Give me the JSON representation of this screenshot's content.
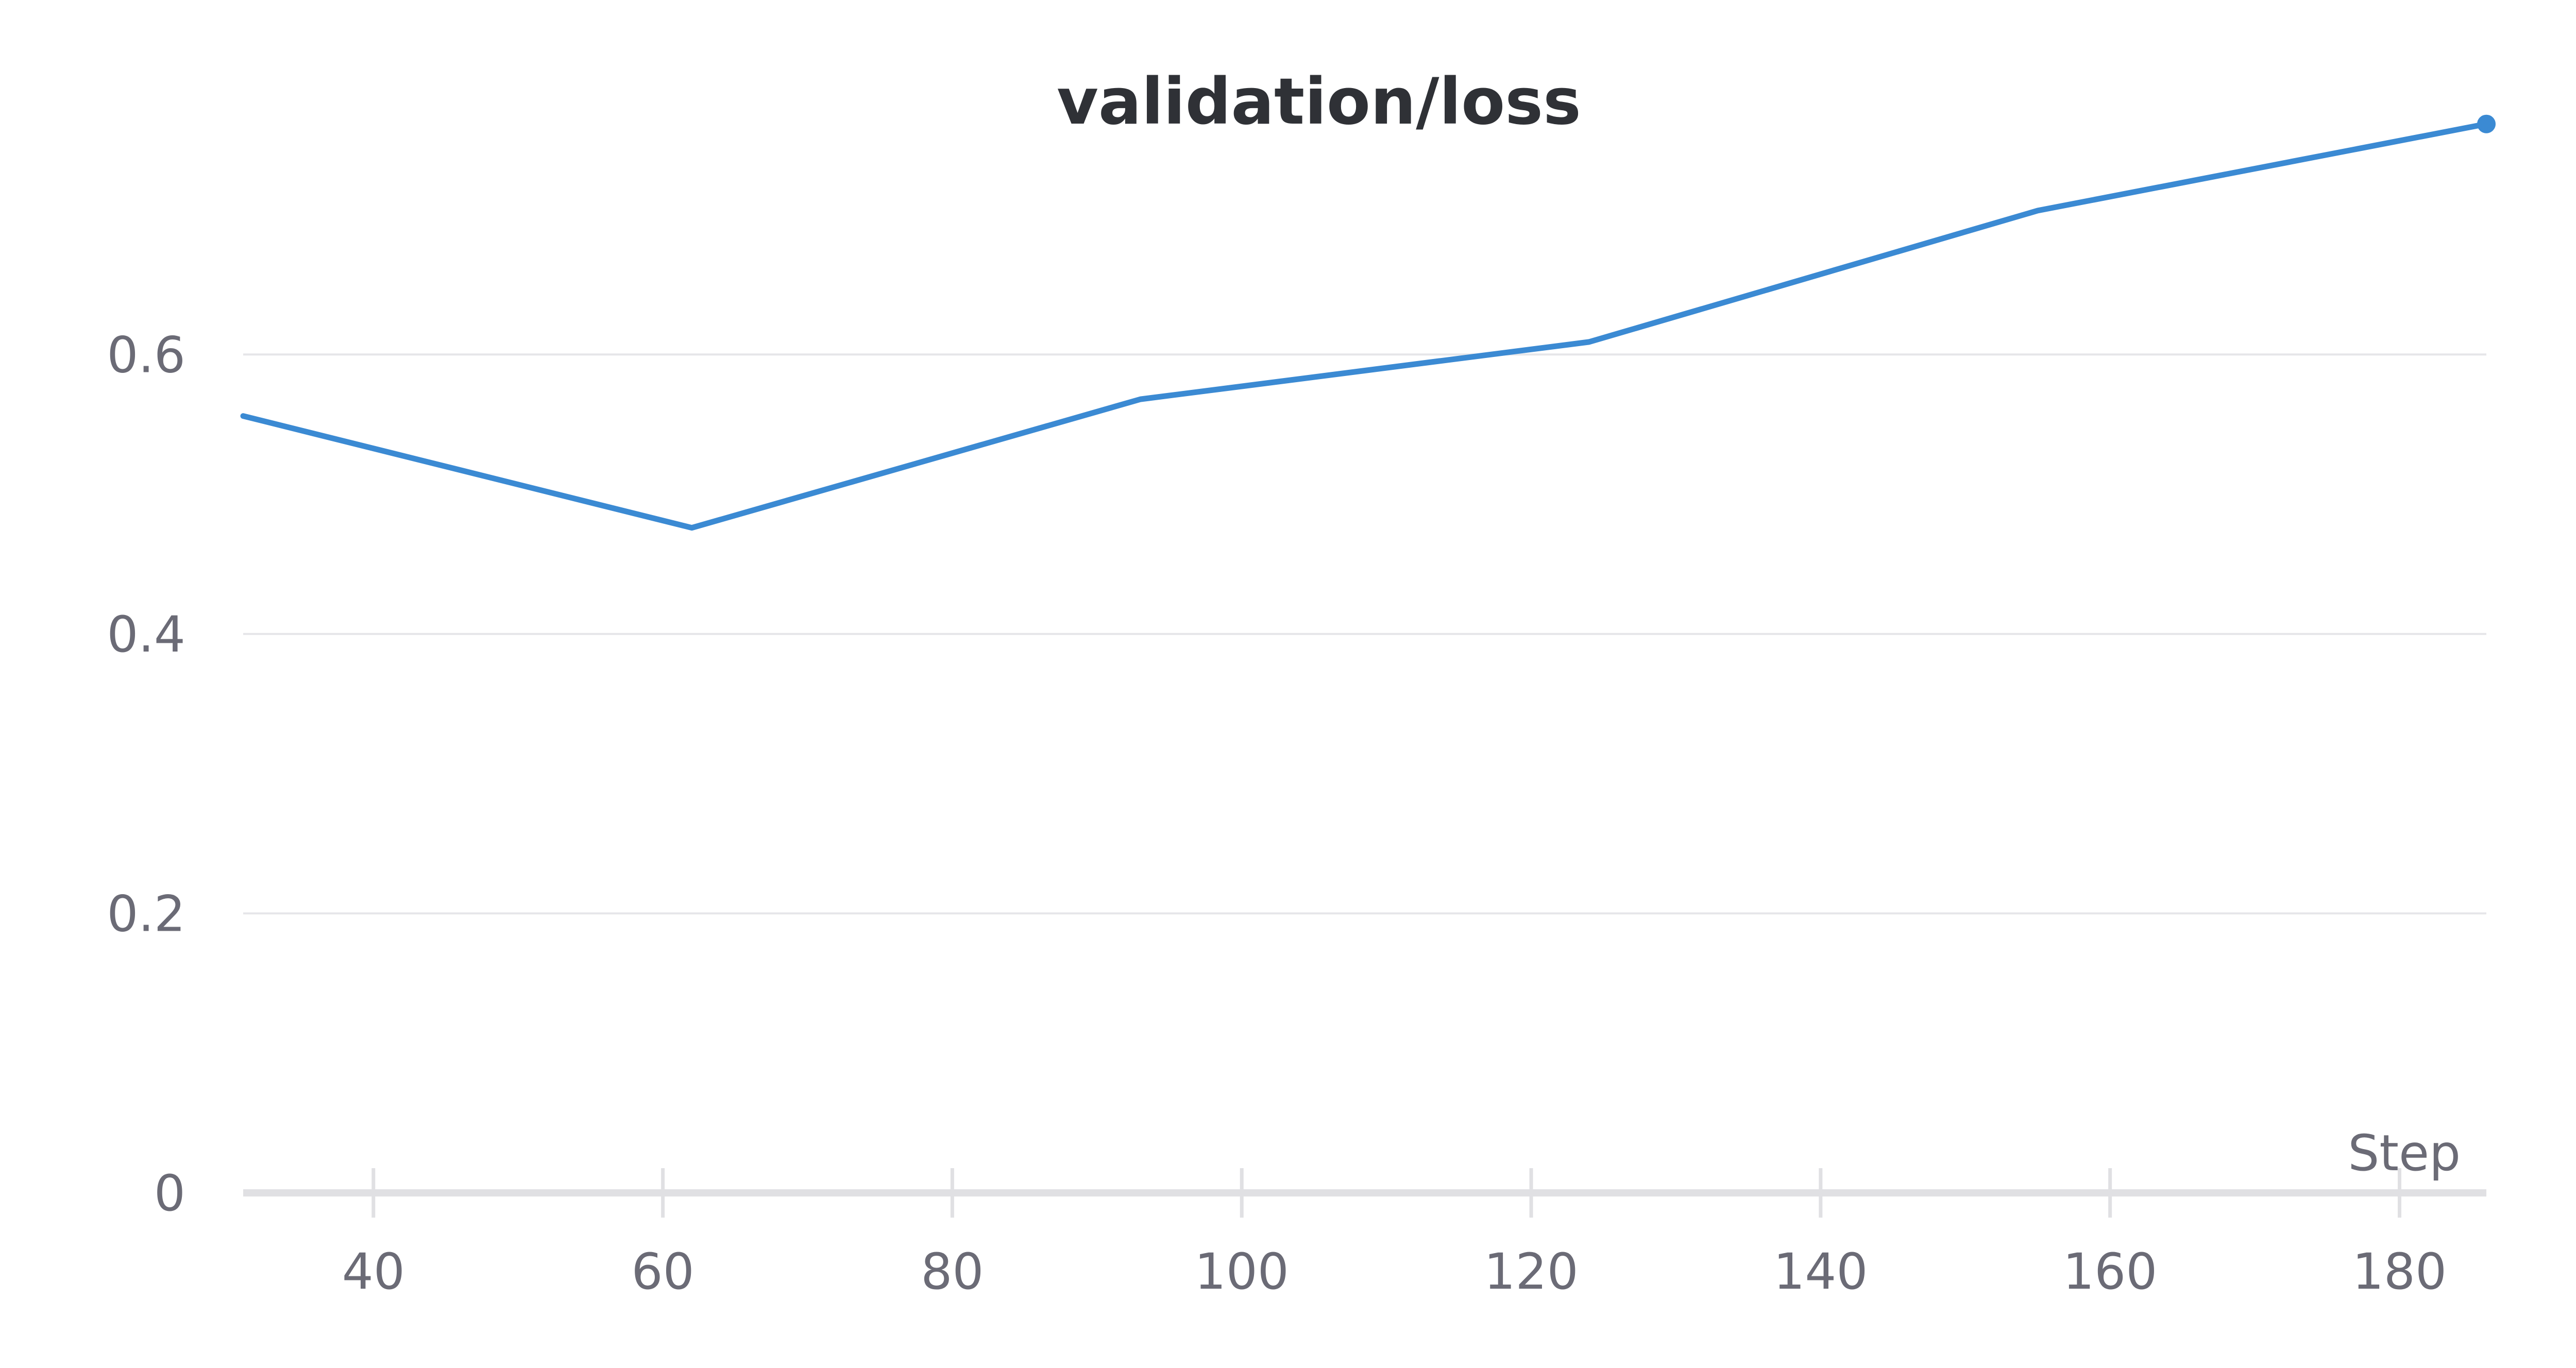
{
  "chart_data": {
    "type": "line",
    "title": "validation/loss",
    "xlabel": "Step",
    "ylabel": "",
    "xlim": [
      31,
      186
    ],
    "ylim": [
      0,
      0.78
    ],
    "x_ticks": [
      40,
      60,
      80,
      100,
      120,
      140,
      160,
      180
    ],
    "y_ticks": [
      0,
      0.2,
      0.4,
      0.6
    ],
    "y_tick_labels": [
      "0",
      "0.2",
      "0.4",
      "0.6"
    ],
    "grid": true,
    "series": [
      {
        "color": "#3b8ad3",
        "x": [
          31,
          62,
          93,
          124,
          155,
          186
        ],
        "y": [
          0.556,
          0.476,
          0.568,
          0.609,
          0.703,
          0.765
        ]
      }
    ]
  }
}
